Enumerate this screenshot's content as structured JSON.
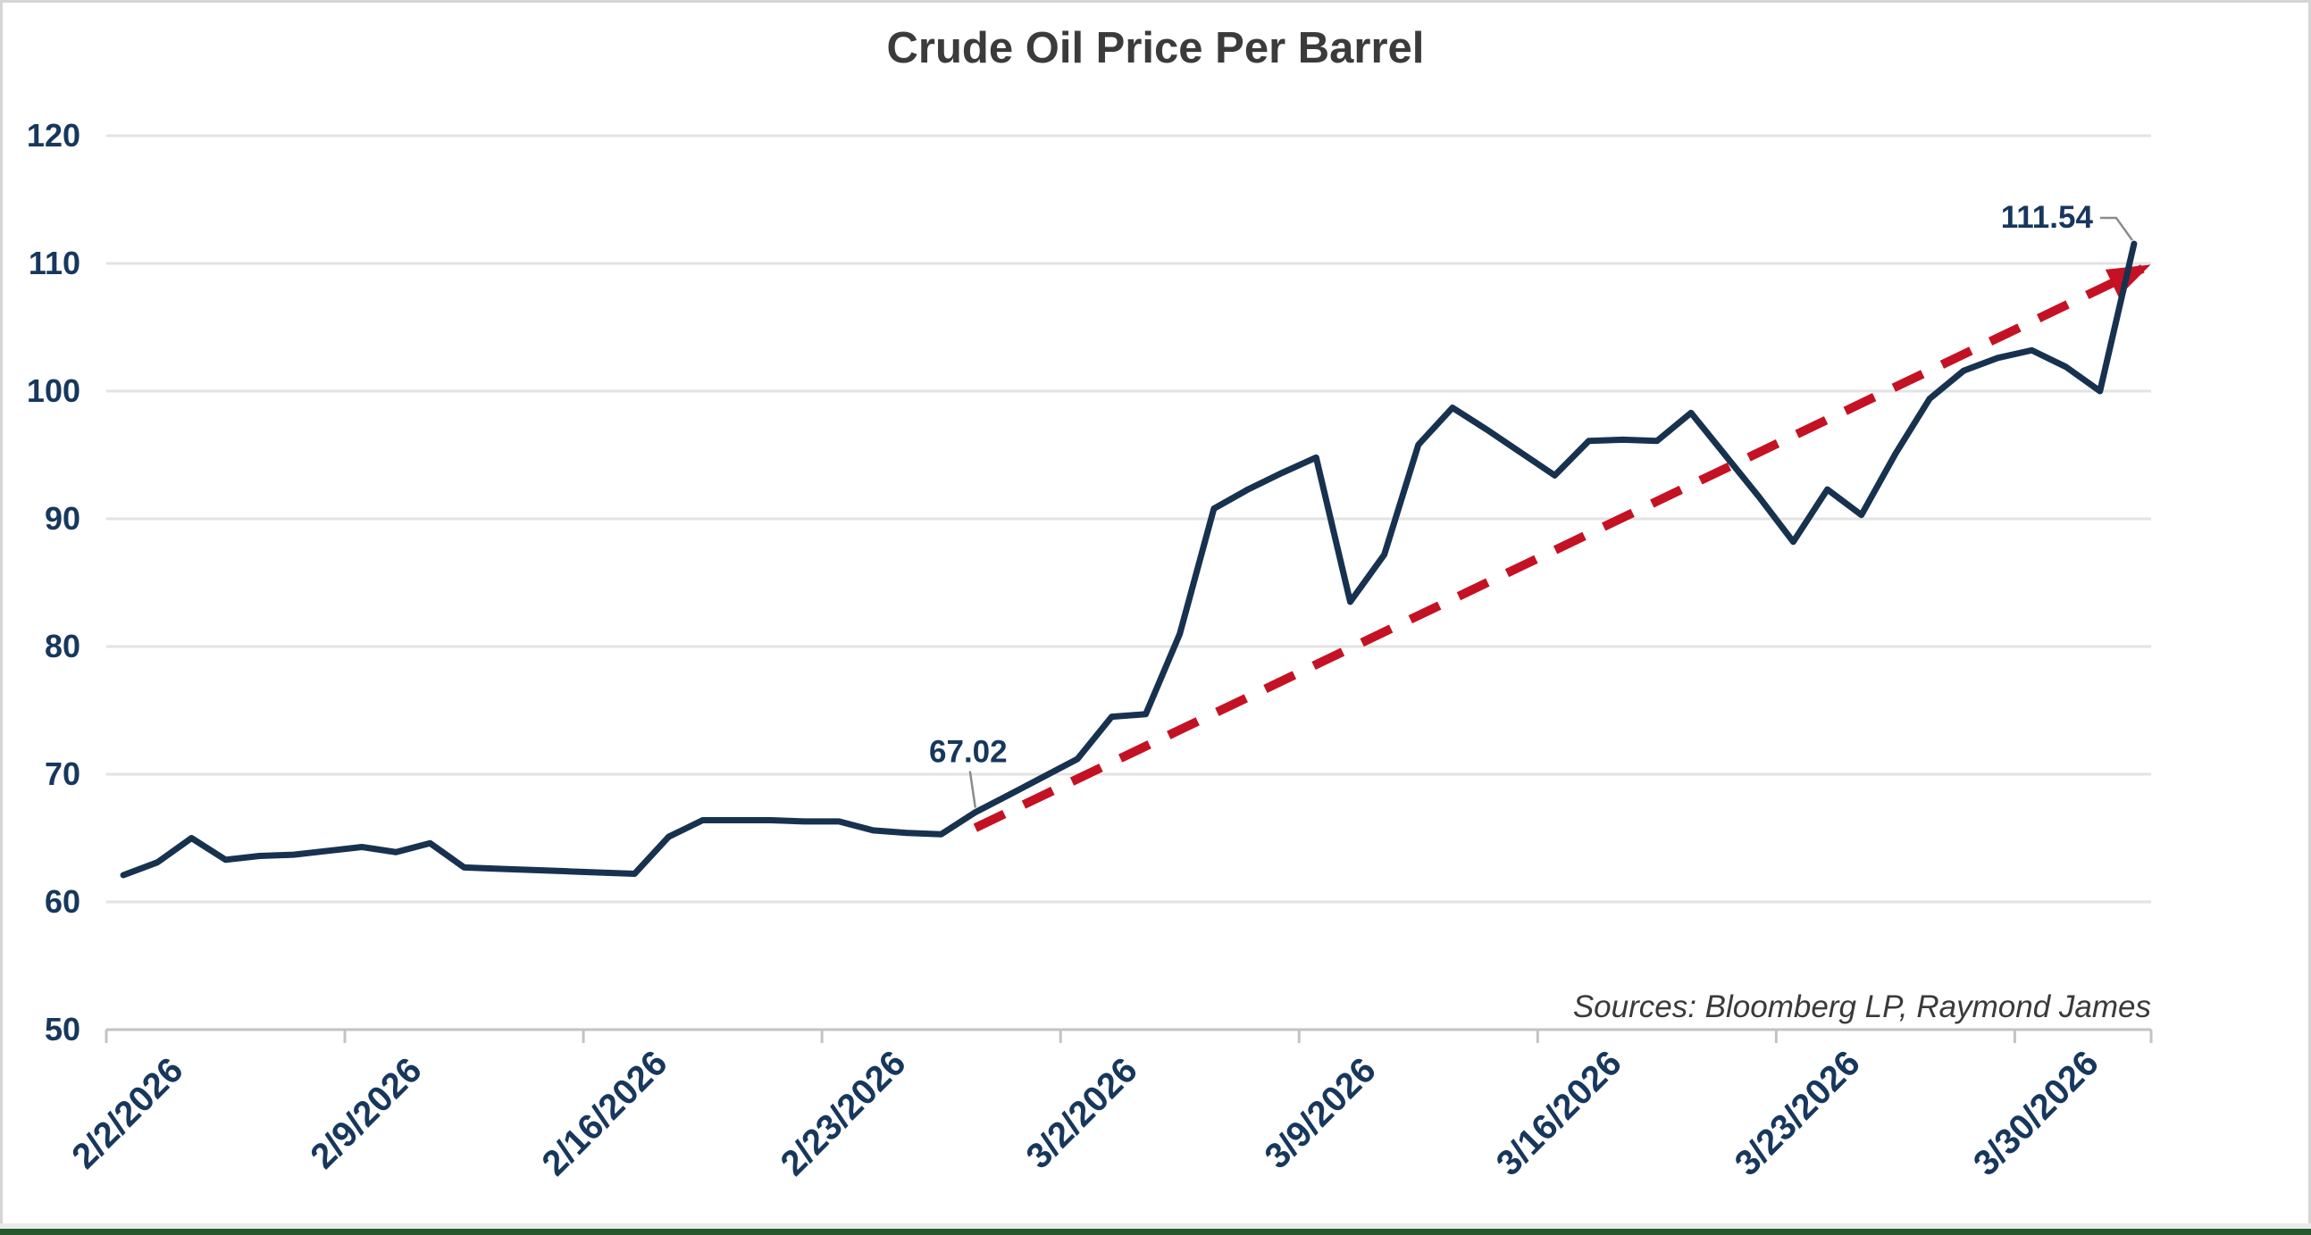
{
  "title": "Crude Oil Price Per Barrel",
  "source_note": "Sources: Bloomberg LP, Raymond James",
  "colors": {
    "price_line": "#17324f",
    "trend_line": "#c41224",
    "axis_text": "#17375d",
    "title_text": "#3b3b3b",
    "gridline": "#e3e3e3",
    "axis_line": "#c3c3c3",
    "leader_line": "#8c8c8c",
    "bottom_bar_green": "#27582e"
  },
  "chart_data": {
    "type": "line",
    "title": "Crude Oil Price Per Barrel",
    "xlabel": "",
    "ylabel": "",
    "ylim": [
      50,
      120
    ],
    "yticks": [
      120,
      110,
      100,
      90,
      80,
      70,
      60,
      50
    ],
    "grid": "horizontal",
    "legend": "none",
    "xtick_labels": [
      "2/2/2026",
      "2/9/2026",
      "2/16/2026",
      "2/23/2026",
      "3/2/2026",
      "3/9/2026",
      "3/16/2026",
      "3/23/2026",
      "3/30/2026"
    ],
    "xtick_every_n_points": 7,
    "x": [
      "2/2/2026",
      "2/3/2026",
      "2/4/2026",
      "2/5/2026",
      "2/6/2026",
      "2/7/2026",
      "2/8/2026",
      "2/9/2026",
      "2/10/2026",
      "2/11/2026",
      "2/12/2026",
      "2/13/2026",
      "2/14/2026",
      "2/15/2026",
      "2/16/2026",
      "2/17/2026",
      "2/18/2026",
      "2/19/2026",
      "2/20/2026",
      "2/21/2026",
      "2/22/2026",
      "2/23/2026",
      "2/24/2026",
      "2/25/2026",
      "2/26/2026",
      "2/27/2026",
      "2/28/2026",
      "3/1/2026",
      "3/2/2026",
      "3/3/2026",
      "3/4/2026",
      "3/5/2026",
      "3/6/2026",
      "3/7/2026",
      "3/8/2026",
      "3/9/2026",
      "3/10/2026",
      "3/11/2026",
      "3/12/2026",
      "3/13/2026",
      "3/14/2026",
      "3/15/2026",
      "3/16/2026",
      "3/17/2026",
      "3/18/2026",
      "3/19/2026",
      "3/20/2026",
      "3/21/2026",
      "3/22/2026",
      "3/23/2026",
      "3/24/2026",
      "3/25/2026",
      "3/26/2026",
      "3/27/2026",
      "3/28/2026",
      "3/29/2026",
      "3/30/2026",
      "3/31/2026",
      "4/1/2026",
      "4/2/2026"
    ],
    "series": [
      {
        "name": "Crude Oil Price Per Barrel",
        "color": "#17324f",
        "values": [
          62.1,
          63.1,
          65.0,
          63.3,
          63.6,
          63.7,
          64.0,
          64.3,
          63.9,
          64.6,
          62.7,
          62.6,
          62.5,
          62.4,
          62.3,
          62.2,
          65.1,
          66.4,
          66.4,
          66.4,
          66.3,
          66.3,
          65.6,
          65.4,
          65.3,
          67.02,
          68.4,
          69.8,
          71.2,
          74.5,
          74.7,
          81.0,
          90.8,
          92.3,
          93.6,
          94.8,
          83.5,
          87.2,
          95.8,
          98.7,
          97.0,
          95.2,
          93.4,
          96.1,
          96.2,
          96.1,
          98.3,
          95.0,
          91.7,
          88.2,
          92.3,
          90.3,
          95.1,
          99.4,
          101.6,
          102.6,
          103.2,
          101.9,
          100.0,
          111.54
        ]
      }
    ],
    "annotations": [
      {
        "x": "2/27/2026",
        "value": 67.02,
        "label": "67.02"
      },
      {
        "x": "4/2/2026",
        "value": 111.54,
        "label": "111.54"
      }
    ],
    "trendline": {
      "style": "dashed",
      "color": "#c41224",
      "arrow": true,
      "from": {
        "xi": 25.0,
        "value": 65.8
      },
      "to": {
        "xi": 59.25,
        "value": 109.6
      }
    }
  }
}
